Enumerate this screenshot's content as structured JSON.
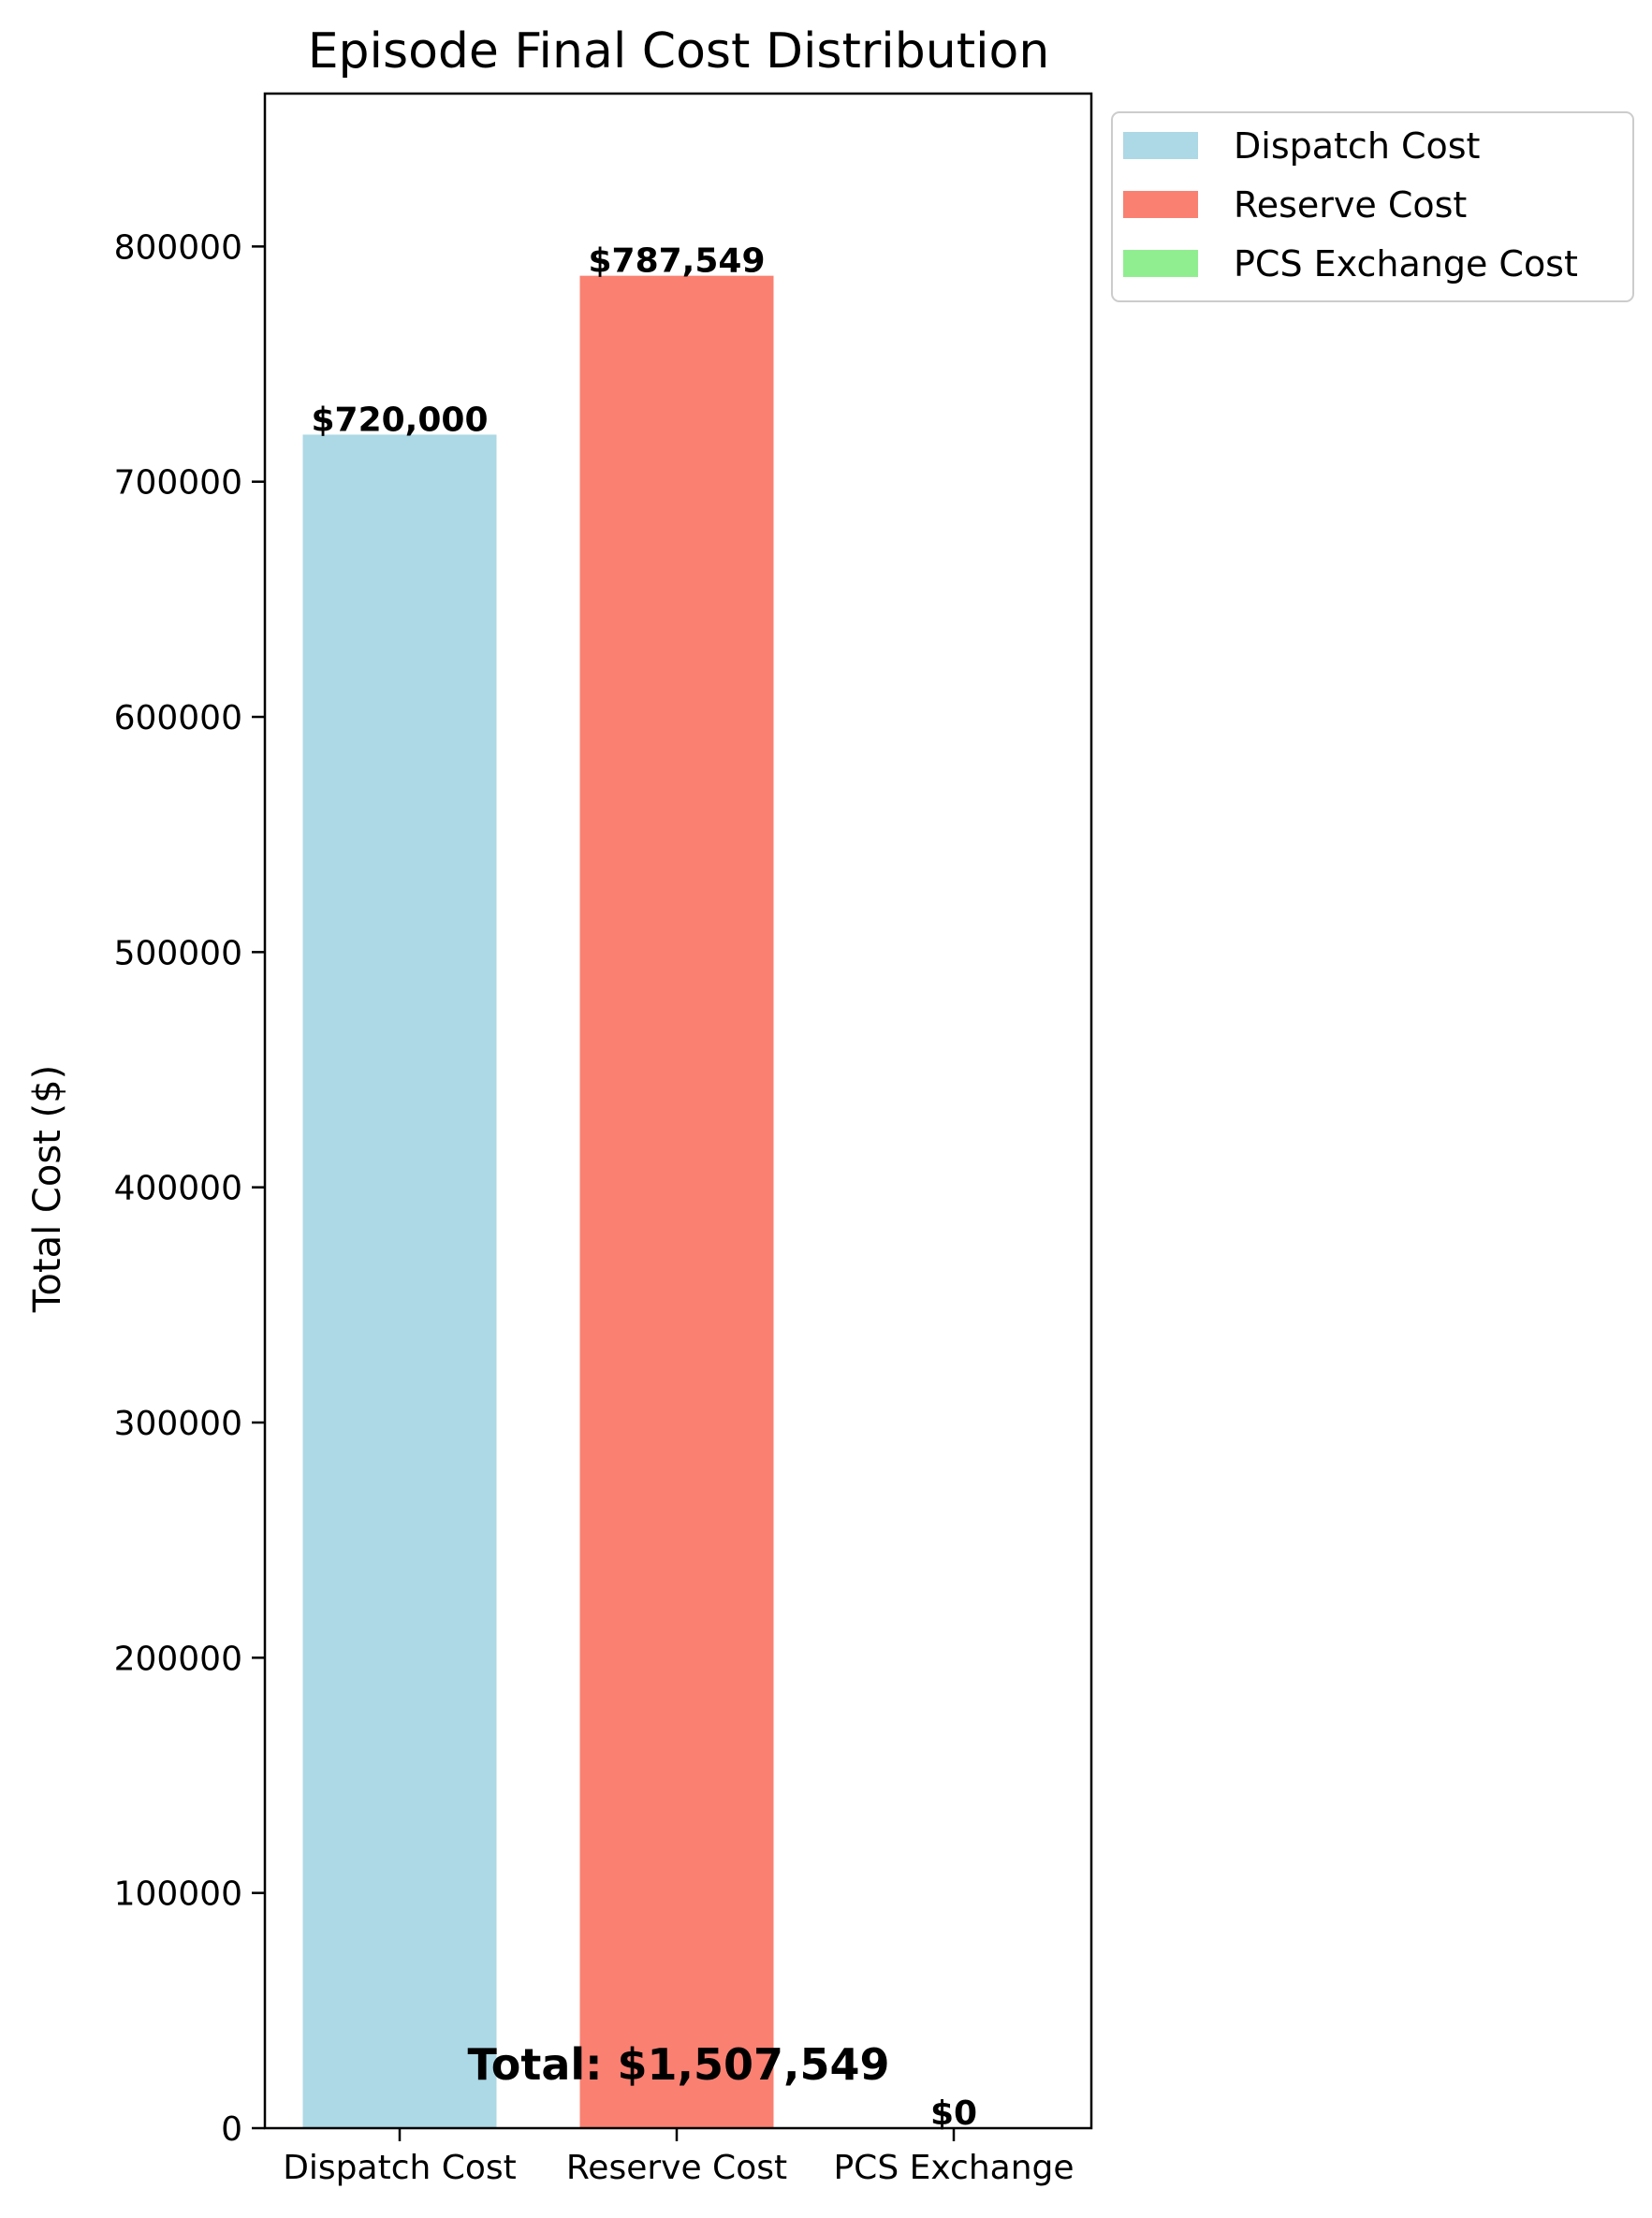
{
  "chart_data": {
    "type": "bar",
    "title": "Episode Final Cost Distribution",
    "ylabel": "Total Cost ($)",
    "xlabel": "",
    "ylim": [
      0,
      865000
    ],
    "yticks": [
      0,
      100000,
      200000,
      300000,
      400000,
      500000,
      600000,
      700000,
      800000
    ],
    "categories": [
      "Dispatch Cost",
      "Reserve Cost",
      "PCS Exchange"
    ],
    "values": [
      720000,
      787549,
      0
    ],
    "value_labels": [
      "$720,000",
      "$787,549",
      "$0"
    ],
    "colors": [
      "#add8e6",
      "#fa8072",
      "#90ee90"
    ],
    "annotation": "Total: $1,507,549",
    "legend": {
      "placement": "outside-top-right",
      "entries": [
        {
          "label": "Dispatch Cost",
          "color": "#add8e6"
        },
        {
          "label": "Reserve Cost",
          "color": "#fa8072"
        },
        {
          "label": "PCS Exchange Cost",
          "color": "#90ee90"
        }
      ]
    },
    "grid": false
  }
}
